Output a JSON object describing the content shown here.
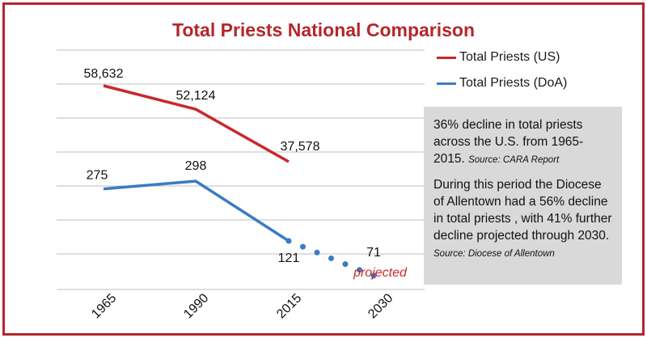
{
  "colors": {
    "frame": "#b5262c",
    "us": "#c8282d",
    "doa": "#3b7bc4",
    "grid": "#bfbfbf",
    "note_bg": "#d9d9d9"
  },
  "chart_data": {
    "type": "line",
    "title": "Total Priests National Comparison",
    "categories": [
      "1965",
      "1990",
      "2015",
      "2030"
    ],
    "series": [
      {
        "name": "Total Priests (US)",
        "values": [
          58632,
          52124,
          37578,
          null
        ],
        "labels": [
          "58,632",
          "52,124",
          "37,578",
          ""
        ]
      },
      {
        "name": "Total Priests (DoA)",
        "values": [
          275,
          298,
          121,
          null
        ],
        "labels": [
          "275",
          "298",
          "121",
          ""
        ]
      }
    ],
    "projection": {
      "series": "Total Priests (DoA)",
      "from": "2015",
      "to": "2030",
      "values": [
        121,
        71
      ],
      "label": "71",
      "note": "projected"
    },
    "grid": true,
    "legend": "top-right"
  },
  "note": {
    "p1": "36% decline in total priests across the U.S. from 1965-2015.",
    "p1_source": "Source: CARA Report",
    "p2": "During this period the Diocese of Allentown had a 56% decline in total priests , with 41% further decline projected through 2030.",
    "p2_source": "Source: Diocese of Allentown"
  }
}
